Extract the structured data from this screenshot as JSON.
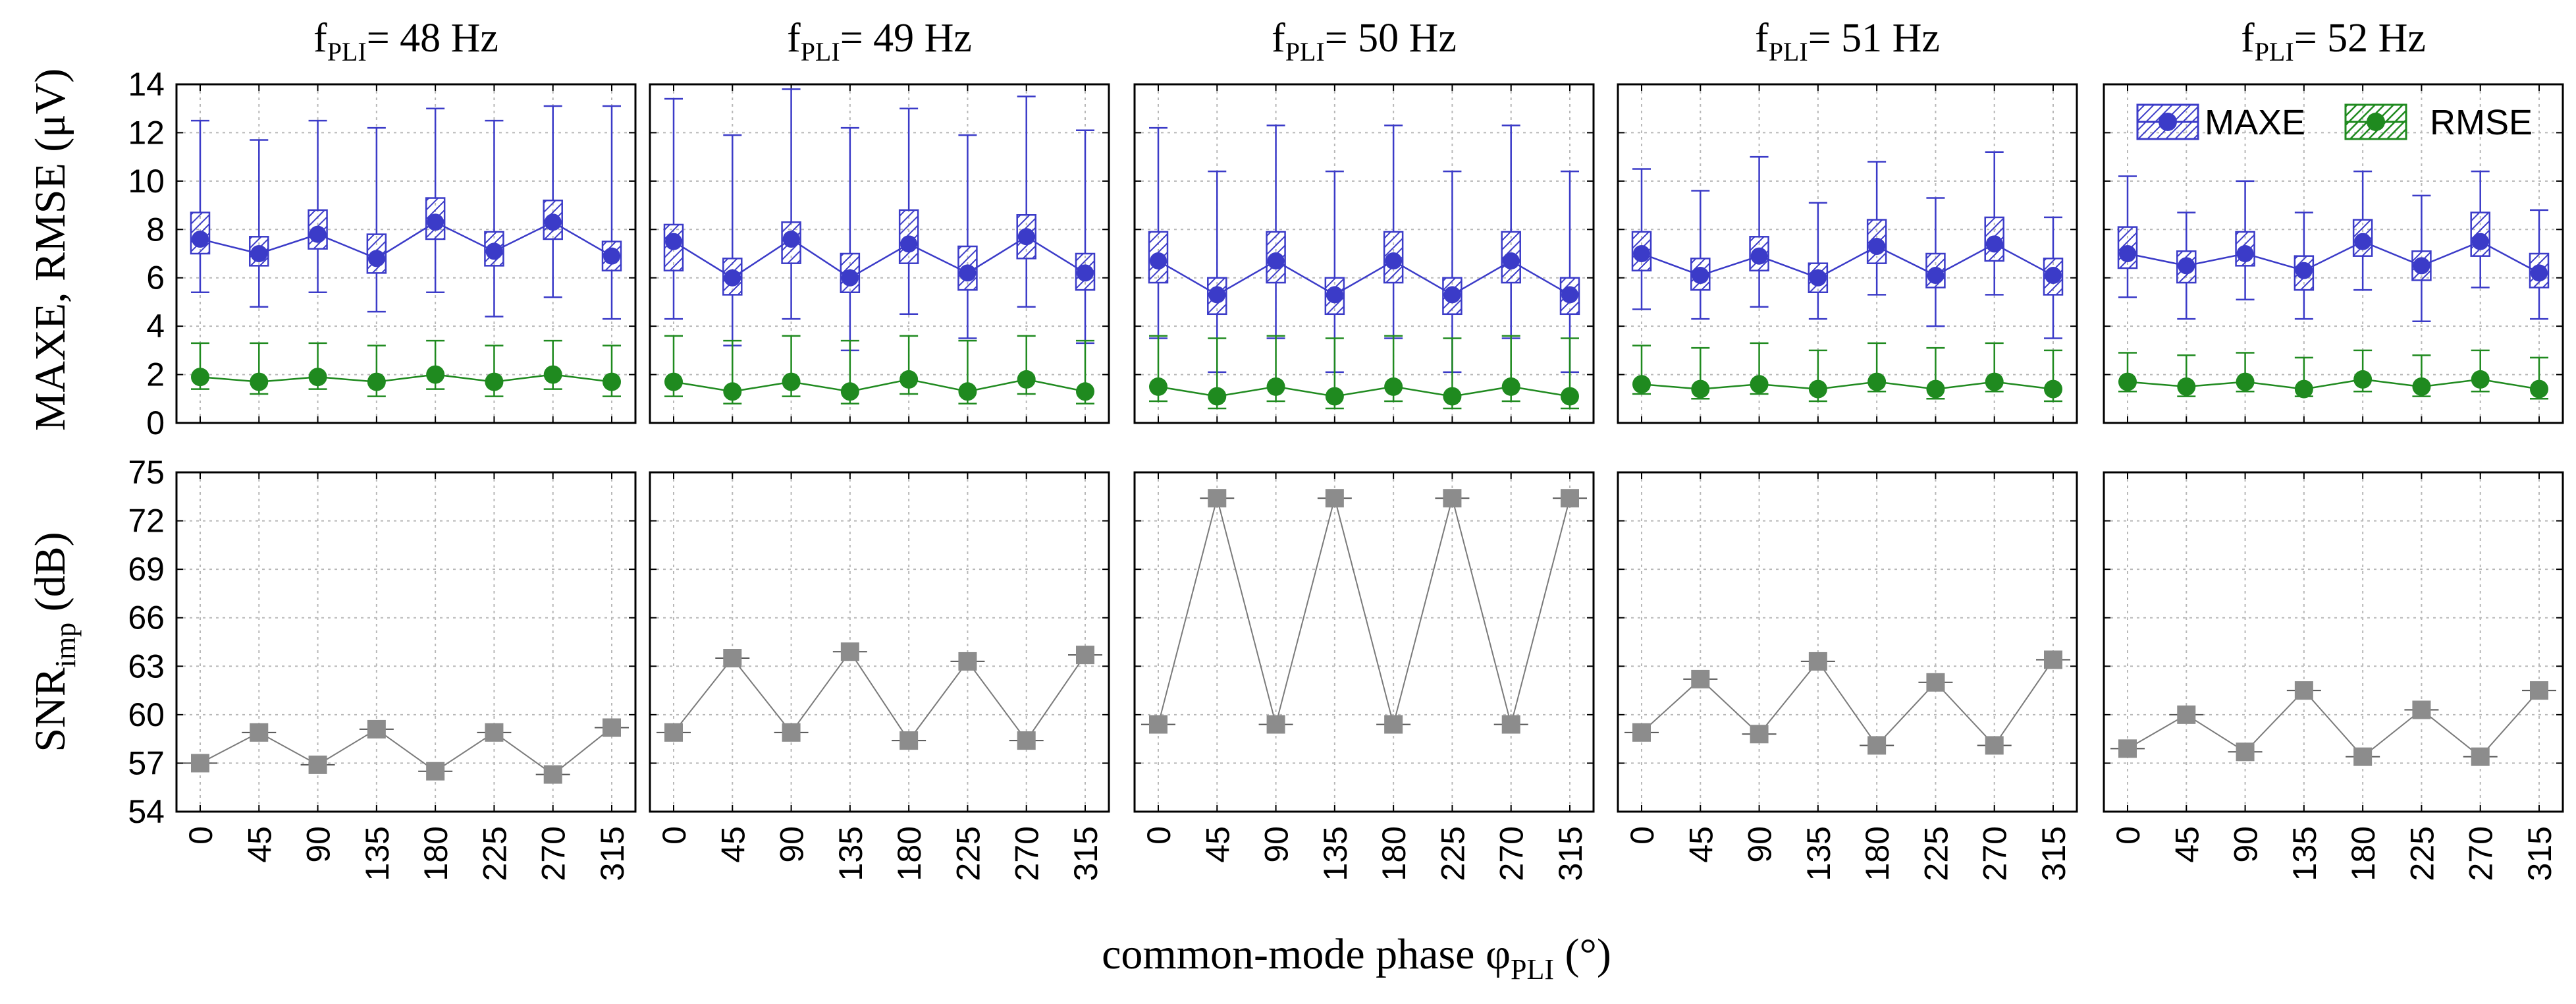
{
  "figure": {
    "x_axis_title_main": "common-mode phase φ",
    "x_axis_title_sub": "PLI",
    "x_axis_title_unit": "(°)",
    "top_ylabel": "MAXE, RMSE (μV)",
    "bottom_ylabel_main": "SNR",
    "bottom_ylabel_sub": "imp",
    "bottom_ylabel_unit": "(dB)",
    "panel_title_prefix": "f",
    "panel_title_sub": "PLI"
  },
  "colors": {
    "maxe": "#3b3bc8",
    "rmse": "#1f8a1f",
    "snr": "#7a7a7a",
    "snr_marker": "#8c8c8c",
    "grid": "#b8b8b8",
    "frame": "#000000"
  },
  "chart_data": {
    "type": "box",
    "x": [
      "0",
      "45",
      "90",
      "135",
      "180",
      "225",
      "270",
      "315"
    ],
    "top_axis": {
      "ylim": [
        0,
        14
      ],
      "ticks": [
        "0",
        "2",
        "4",
        "6",
        "8",
        "10",
        "12",
        "14"
      ]
    },
    "bottom_axis": {
      "ylim": [
        54,
        75
      ],
      "ticks": [
        "54",
        "57",
        "60",
        "63",
        "66",
        "69",
        "72",
        "75"
      ]
    },
    "legend": {
      "placement": "top-right",
      "panel": 4,
      "entries": [
        "MAXE",
        "RMSE"
      ]
    },
    "panels": [
      {
        "title_value": "= 48 Hz",
        "maxe": {
          "mean": [
            7.6,
            7.0,
            7.8,
            6.8,
            8.3,
            7.1,
            8.3,
            6.9
          ],
          "q1": [
            7.0,
            6.5,
            7.2,
            6.2,
            7.6,
            6.5,
            7.6,
            6.3
          ],
          "q3": [
            8.7,
            7.7,
            8.8,
            7.8,
            9.3,
            7.9,
            9.2,
            7.5
          ],
          "min": [
            5.4,
            4.8,
            5.4,
            4.6,
            5.4,
            4.4,
            5.2,
            4.3
          ],
          "max": [
            12.5,
            11.7,
            12.5,
            12.2,
            13.0,
            12.5,
            13.1,
            13.1
          ]
        },
        "rmse": {
          "mean": [
            1.9,
            1.7,
            1.9,
            1.7,
            2.0,
            1.7,
            2.0,
            1.7
          ],
          "min": [
            1.4,
            1.2,
            1.4,
            1.1,
            1.4,
            1.1,
            1.4,
            1.1
          ],
          "max": [
            3.3,
            3.3,
            3.3,
            3.2,
            3.4,
            3.2,
            3.4,
            3.2
          ]
        },
        "snr": [
          57.0,
          58.9,
          56.9,
          59.1,
          56.5,
          58.9,
          56.3,
          59.2
        ]
      },
      {
        "title_value": "= 49 Hz",
        "maxe": {
          "mean": [
            7.5,
            6.0,
            7.6,
            6.0,
            7.4,
            6.2,
            7.7,
            6.2
          ],
          "q1": [
            6.3,
            5.3,
            6.6,
            5.4,
            6.6,
            5.5,
            6.8,
            5.5
          ],
          "q3": [
            8.2,
            6.8,
            8.3,
            7.0,
            8.8,
            7.3,
            8.6,
            7.0
          ],
          "min": [
            4.3,
            3.2,
            4.3,
            3.0,
            4.5,
            3.5,
            4.8,
            3.3
          ],
          "max": [
            13.4,
            11.9,
            13.8,
            12.2,
            13.0,
            11.9,
            13.5,
            12.1
          ]
        },
        "rmse": {
          "mean": [
            1.7,
            1.3,
            1.7,
            1.3,
            1.8,
            1.3,
            1.8,
            1.3
          ],
          "min": [
            1.1,
            0.8,
            1.1,
            0.8,
            1.2,
            0.8,
            1.2,
            0.8
          ],
          "max": [
            3.6,
            3.4,
            3.6,
            3.4,
            3.6,
            3.4,
            3.6,
            3.4
          ]
        },
        "snr": [
          58.9,
          63.5,
          58.9,
          63.9,
          58.4,
          63.3,
          58.4,
          63.7
        ]
      },
      {
        "title_value": "= 50 Hz",
        "maxe": {
          "mean": [
            6.7,
            5.3,
            6.7,
            5.3,
            6.7,
            5.3,
            6.7,
            5.3
          ],
          "q1": [
            5.8,
            4.5,
            5.8,
            4.5,
            5.8,
            4.5,
            5.8,
            4.5
          ],
          "q3": [
            7.9,
            6.0,
            7.9,
            6.0,
            7.9,
            6.0,
            7.9,
            6.0
          ],
          "min": [
            3.5,
            2.1,
            3.5,
            2.1,
            3.5,
            2.1,
            3.5,
            2.1
          ],
          "max": [
            12.2,
            10.4,
            12.3,
            10.4,
            12.3,
            10.4,
            12.3,
            10.4
          ]
        },
        "rmse": {
          "mean": [
            1.5,
            1.1,
            1.5,
            1.1,
            1.5,
            1.1,
            1.5,
            1.1
          ],
          "min": [
            0.9,
            0.6,
            0.9,
            0.6,
            0.9,
            0.6,
            0.9,
            0.6
          ],
          "max": [
            3.6,
            3.5,
            3.6,
            3.5,
            3.6,
            3.5,
            3.6,
            3.5
          ]
        },
        "snr": [
          59.4,
          73.4,
          59.4,
          73.4,
          59.4,
          73.4,
          59.4,
          73.4
        ]
      },
      {
        "title_value": "= 51 Hz",
        "maxe": {
          "mean": [
            7.0,
            6.1,
            6.9,
            6.0,
            7.3,
            6.1,
            7.4,
            6.1
          ],
          "q1": [
            6.3,
            5.5,
            6.3,
            5.4,
            6.6,
            5.6,
            6.7,
            5.3
          ],
          "q3": [
            7.9,
            6.8,
            7.7,
            6.6,
            8.4,
            7.0,
            8.5,
            6.8
          ],
          "min": [
            4.7,
            4.3,
            4.8,
            4.3,
            5.3,
            4.0,
            5.3,
            3.5
          ],
          "max": [
            10.5,
            9.6,
            11.0,
            9.1,
            10.8,
            9.3,
            11.2,
            8.5
          ]
        },
        "rmse": {
          "mean": [
            1.6,
            1.4,
            1.6,
            1.4,
            1.7,
            1.4,
            1.7,
            1.4
          ],
          "min": [
            1.2,
            1.0,
            1.2,
            0.9,
            1.3,
            1.0,
            1.3,
            0.9
          ],
          "max": [
            3.2,
            3.1,
            3.3,
            3.0,
            3.3,
            3.1,
            3.3,
            3.0
          ]
        },
        "snr": [
          58.9,
          62.2,
          58.8,
          63.3,
          58.1,
          62.0,
          58.1,
          63.4
        ]
      },
      {
        "title_value": "= 52 Hz",
        "maxe": {
          "mean": [
            7.0,
            6.5,
            7.0,
            6.3,
            7.5,
            6.5,
            7.5,
            6.2
          ],
          "q1": [
            6.4,
            5.8,
            6.5,
            5.5,
            6.9,
            5.9,
            6.9,
            5.6
          ],
          "q3": [
            8.1,
            7.1,
            7.9,
            6.9,
            8.4,
            7.1,
            8.7,
            7.0
          ],
          "min": [
            5.2,
            4.3,
            5.1,
            4.3,
            5.5,
            4.2,
            5.6,
            4.3
          ],
          "max": [
            10.2,
            8.7,
            10.0,
            8.7,
            10.4,
            9.4,
            10.4,
            8.8
          ]
        },
        "rmse": {
          "mean": [
            1.7,
            1.5,
            1.7,
            1.4,
            1.8,
            1.5,
            1.8,
            1.4
          ],
          "min": [
            1.3,
            1.1,
            1.3,
            1.1,
            1.3,
            1.1,
            1.3,
            1.0
          ],
          "max": [
            2.9,
            2.8,
            2.9,
            2.7,
            3.0,
            2.8,
            3.0,
            2.7
          ]
        },
        "snr": [
          57.9,
          60.0,
          57.7,
          61.5,
          57.4,
          60.3,
          57.4,
          61.5
        ]
      }
    ]
  }
}
